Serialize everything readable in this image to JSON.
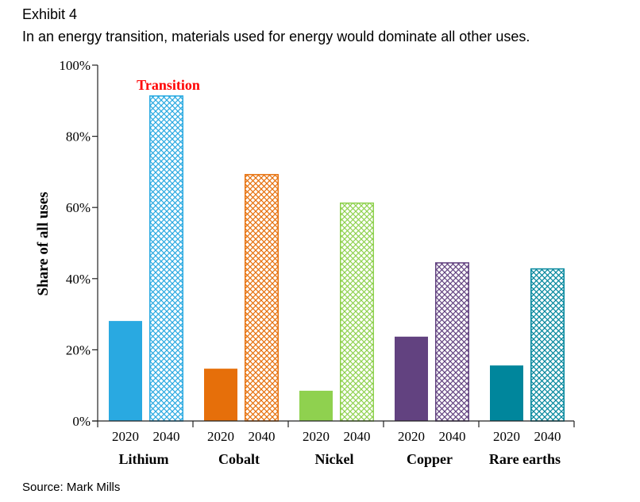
{
  "header": {
    "exhibit": "Exhibit 4",
    "subtitle": "In an energy transition, materials used for energy would dominate all other uses."
  },
  "footer": {
    "source": "Source: Mark Mills"
  },
  "chart_data": {
    "type": "bar",
    "title": "",
    "annotation": "Transition",
    "annotation_color": "#ff0000",
    "ylabel": "Share of all uses",
    "xlabel": "",
    "ylim": [
      0,
      100
    ],
    "yticks": [
      "0%",
      "20%",
      "40%",
      "60%",
      "80%",
      "100%"
    ],
    "categories": [
      "Lithium",
      "Cobalt",
      "Nickel",
      "Copper",
      "Rare earths"
    ],
    "sub_categories": [
      "2020",
      "2040"
    ],
    "colors": [
      "#29a9e1",
      "#e66f0a",
      "#8fd14f",
      "#624280",
      "#00869c"
    ],
    "series": [
      {
        "name": "2020",
        "style": "solid",
        "values": [
          28.1,
          14.7,
          8.5,
          23.7,
          15.6
        ]
      },
      {
        "name": "2040",
        "style": "crosshatch",
        "values": [
          91.5,
          69.4,
          61.4,
          44.6,
          42.9
        ]
      }
    ],
    "grid": false,
    "legend": "none"
  }
}
